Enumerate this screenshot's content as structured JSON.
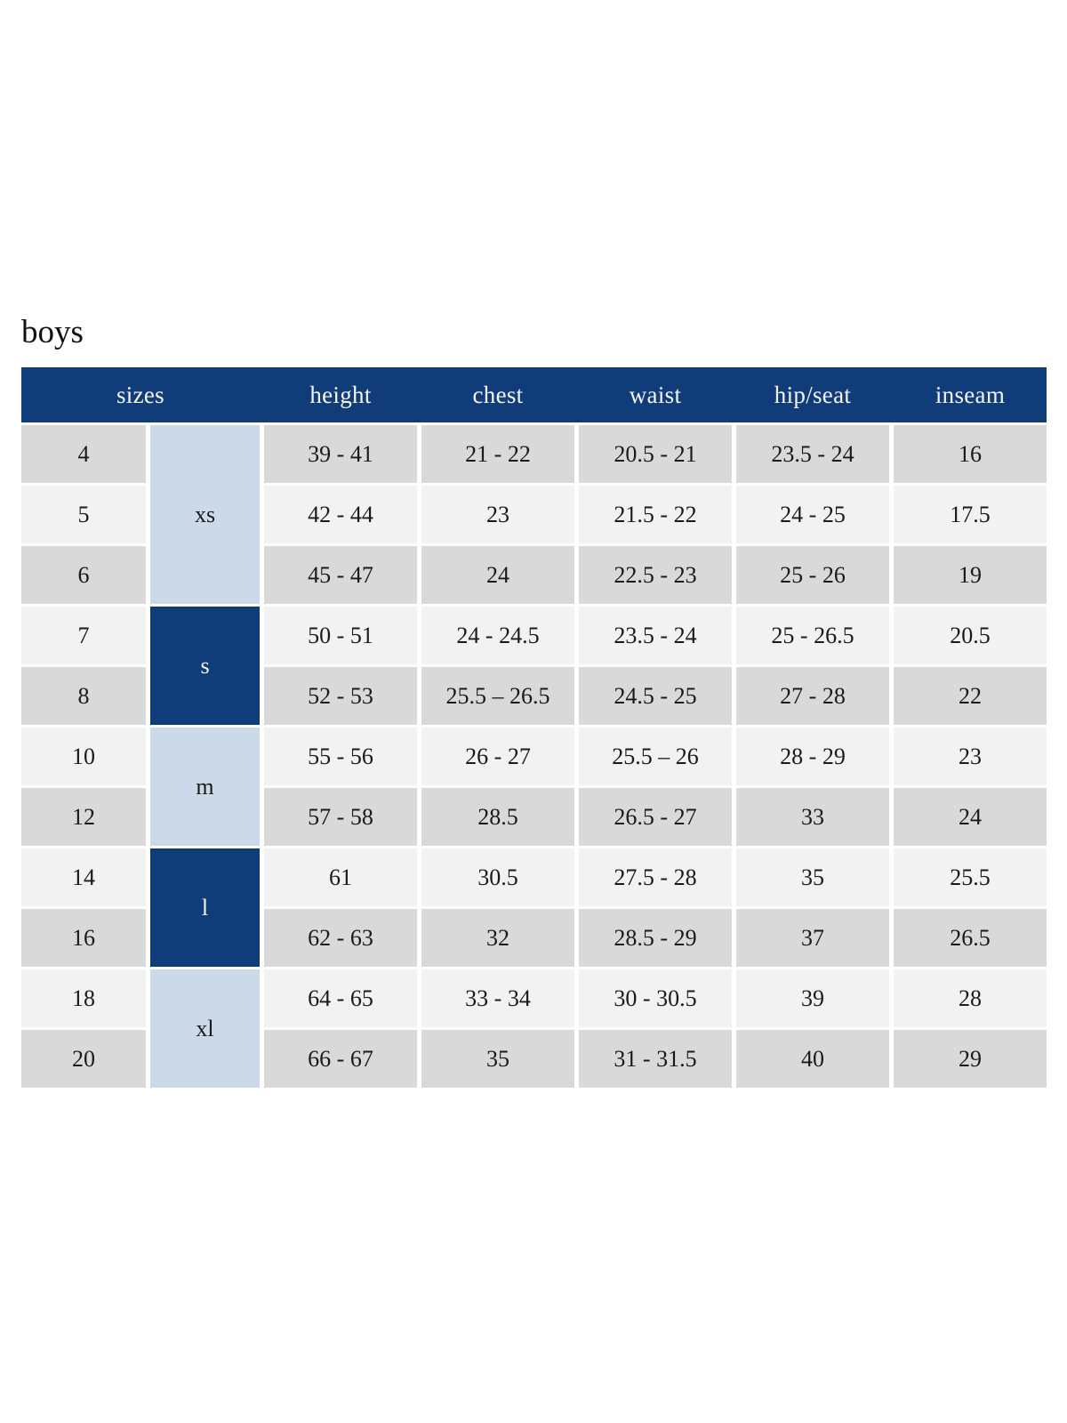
{
  "page": {
    "title": "boys"
  },
  "colors": {
    "navy": "#103d7a",
    "light_blue": "#ccd9e8",
    "row_dark": "#d9d9d9",
    "row_light": "#f2f2f2",
    "body_text": "#1a1a1a",
    "header_text": "#f4f6fa",
    "page_bg": "#ffffff"
  },
  "table": {
    "columns": [
      "sizes",
      "height",
      "chest",
      "waist",
      "hip/seat",
      "inseam"
    ],
    "groups": [
      {
        "label": "xs",
        "span": 3,
        "style": "light"
      },
      {
        "label": "s",
        "span": 2,
        "style": "dark"
      },
      {
        "label": "m",
        "span": 2,
        "style": "light"
      },
      {
        "label": "l",
        "span": 2,
        "style": "dark"
      },
      {
        "label": "xl",
        "span": 2,
        "style": "light"
      }
    ],
    "rows": [
      {
        "size": "4",
        "group": "xs",
        "values": [
          "39 - 41",
          "21 - 22",
          "20.5 - 21",
          "23.5 - 24",
          "16"
        ]
      },
      {
        "size": "5",
        "group": "xs",
        "values": [
          "42 - 44",
          "23",
          "21.5 - 22",
          "24 - 25",
          "17.5"
        ]
      },
      {
        "size": "6",
        "group": "xs",
        "values": [
          "45 - 47",
          "24",
          "22.5 - 23",
          "25 - 26",
          "19"
        ]
      },
      {
        "size": "7",
        "group": "s",
        "values": [
          "50 - 51",
          "24 - 24.5",
          "23.5 - 24",
          "25 - 26.5",
          "20.5"
        ]
      },
      {
        "size": "8",
        "group": "s",
        "values": [
          "52 - 53",
          "25.5 – 26.5",
          "24.5 - 25",
          "27 - 28",
          "22"
        ]
      },
      {
        "size": "10",
        "group": "m",
        "values": [
          "55 - 56",
          "26 - 27",
          "25.5 – 26",
          "28 - 29",
          "23"
        ]
      },
      {
        "size": "12",
        "group": "m",
        "values": [
          "57 - 58",
          "28.5",
          "26.5 - 27",
          "33",
          "24"
        ]
      },
      {
        "size": "14",
        "group": "l",
        "values": [
          "61",
          "30.5",
          "27.5 - 28",
          "35",
          "25.5"
        ]
      },
      {
        "size": "16",
        "group": "l",
        "values": [
          "62 - 63",
          "32",
          "28.5 - 29",
          "37",
          "26.5"
        ]
      },
      {
        "size": "18",
        "group": "xl",
        "values": [
          "64 - 65",
          "33 - 34",
          "30 - 30.5",
          "39",
          "28"
        ]
      },
      {
        "size": "20",
        "group": "xl",
        "values": [
          "66 - 67",
          "35",
          "31 - 31.5",
          "40",
          "29"
        ]
      }
    ]
  }
}
